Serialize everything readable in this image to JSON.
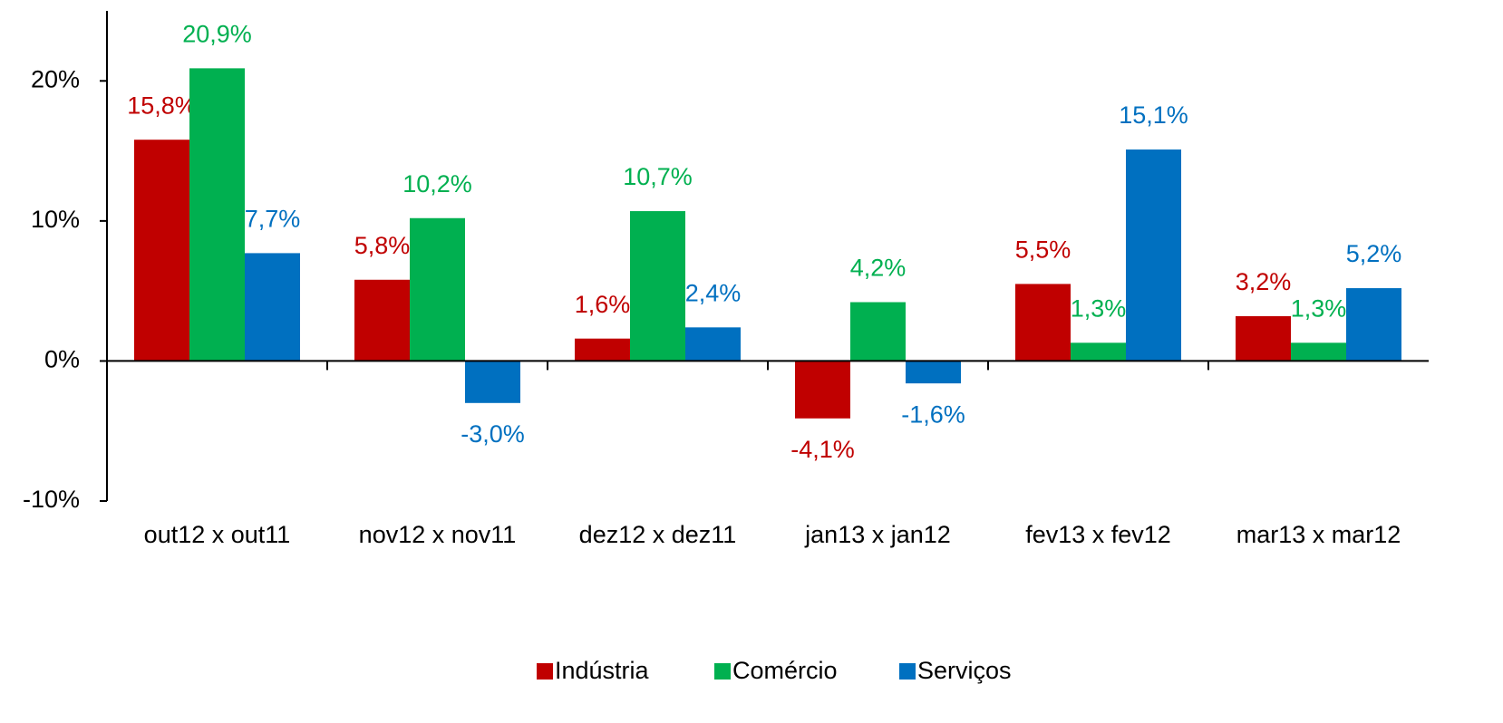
{
  "chart_data": {
    "type": "bar",
    "categories": [
      "out12 x out11",
      "nov12 x nov11",
      "dez12 x dez11",
      "jan13 x jan12",
      "fev13 x fev12",
      "mar13 x mar12"
    ],
    "series": [
      {
        "name": "Indústria",
        "color": "#c00000",
        "values": [
          15.8,
          5.8,
          1.6,
          -4.1,
          5.5,
          3.2
        ],
        "value_labels": [
          "15,8%",
          "5,8%",
          "1,6%",
          "-4,1%",
          "5,5%",
          "3,2%"
        ]
      },
      {
        "name": "Comércio",
        "color": "#00b050",
        "values": [
          20.9,
          10.2,
          10.7,
          4.2,
          1.3,
          1.3
        ],
        "value_labels": [
          "20,9%",
          "10,2%",
          "10,7%",
          "4,2%",
          "1,3%",
          "1,3%"
        ]
      },
      {
        "name": "Serviços",
        "color": "#0070c0",
        "values": [
          7.7,
          -3.0,
          2.4,
          -1.6,
          15.1,
          5.2
        ],
        "value_labels": [
          "7,7%",
          "-3,0%",
          "2,4%",
          "-1,6%",
          "15,1%",
          "5,2%"
        ]
      }
    ],
    "ylim": [
      -10,
      25
    ],
    "yticks": [
      {
        "value": -10,
        "label": "-10%"
      },
      {
        "value": 0,
        "label": "0%"
      },
      {
        "value": 10,
        "label": "10%"
      },
      {
        "value": 20,
        "label": "20%"
      }
    ],
    "legend": "bottom"
  }
}
